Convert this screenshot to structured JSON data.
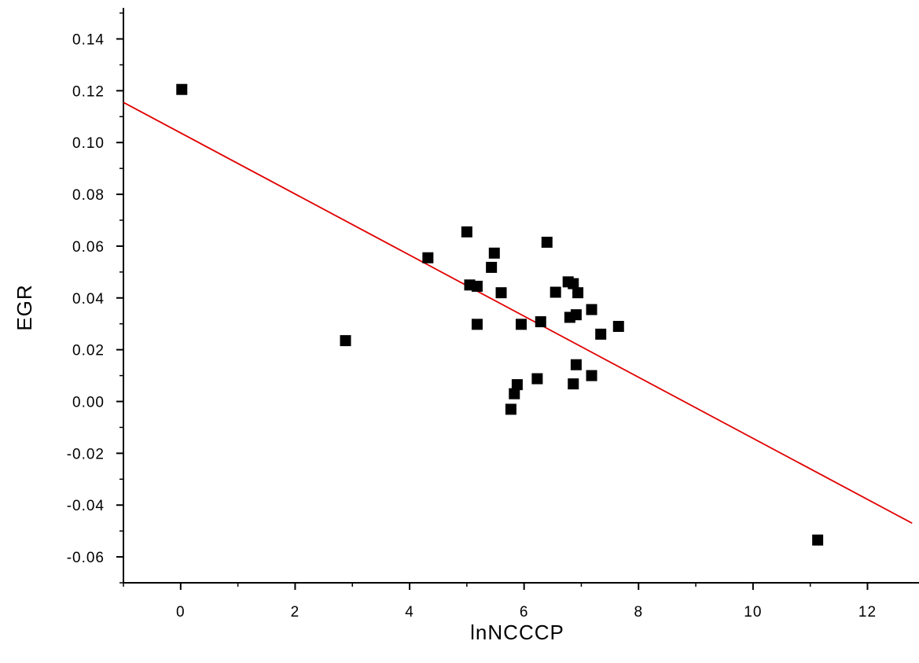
{
  "chart_data": {
    "type": "scatter",
    "xlabel": "lnNCCCP",
    "ylabel": "EGR",
    "xlim": [
      -1,
      12.9
    ],
    "ylim": [
      -0.07,
      0.152
    ],
    "xticks": [
      0,
      2,
      4,
      6,
      8,
      10,
      12
    ],
    "yticks": [
      -0.06,
      -0.04,
      -0.02,
      0.0,
      0.02,
      0.04,
      0.06,
      0.08,
      0.1,
      0.12,
      0.14
    ],
    "xtick_labels": [
      "0",
      "2",
      "4",
      "6",
      "8",
      "10",
      "12"
    ],
    "ytick_labels": [
      "-0.06",
      "-0.04",
      "-0.02",
      "0.00",
      "0.02",
      "0.04",
      "0.06",
      "0.08",
      "0.10",
      "0.12",
      "0.14"
    ],
    "grid": false,
    "series": [
      {
        "marker": "square",
        "color": "#000000",
        "points": [
          [
            0.02,
            0.1205
          ],
          [
            2.88,
            0.0235
          ],
          [
            4.32,
            0.0555
          ],
          [
            5.0,
            0.0655
          ],
          [
            5.05,
            0.045
          ],
          [
            5.18,
            0.0445
          ],
          [
            5.18,
            0.0298
          ],
          [
            5.43,
            0.0518
          ],
          [
            5.48,
            0.0573
          ],
          [
            5.6,
            0.042
          ],
          [
            5.77,
            -0.003
          ],
          [
            5.83,
            0.003
          ],
          [
            5.88,
            0.0065
          ],
          [
            5.95,
            0.0298
          ],
          [
            6.23,
            0.0088
          ],
          [
            6.29,
            0.0308
          ],
          [
            6.4,
            0.0615
          ],
          [
            6.55,
            0.0422
          ],
          [
            6.77,
            0.0462
          ],
          [
            6.8,
            0.0325
          ],
          [
            6.86,
            0.0455
          ],
          [
            6.86,
            0.0068
          ],
          [
            6.91,
            0.0142
          ],
          [
            6.91,
            0.0335
          ],
          [
            6.94,
            0.042
          ],
          [
            7.18,
            0.0355
          ],
          [
            7.18,
            0.01
          ],
          [
            7.34,
            0.026
          ],
          [
            7.65,
            0.029
          ],
          [
            11.13,
            -0.0535
          ]
        ]
      },
      {
        "type": "line",
        "color": "#e00000",
        "points": [
          [
            -1,
            0.1155
          ],
          [
            12.78,
            -0.047
          ]
        ]
      }
    ]
  }
}
